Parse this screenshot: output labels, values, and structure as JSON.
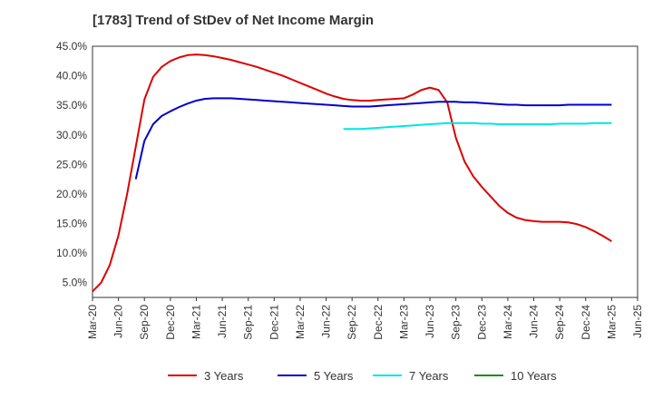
{
  "chart_data": {
    "type": "line",
    "title": "[1783]  Trend of StDev of Net Income Margin",
    "xlabel": "",
    "ylabel": "",
    "ylim": [
      2.5,
      45.0
    ],
    "yticks": [
      5.0,
      10.0,
      15.0,
      20.0,
      25.0,
      30.0,
      35.0,
      40.0,
      45.0
    ],
    "ytick_labels": [
      "5.0%",
      "10.0%",
      "15.0%",
      "20.0%",
      "25.0%",
      "30.0%",
      "35.0%",
      "40.0%",
      "45.0%"
    ],
    "xlim": [
      "2020-03",
      "2025-06"
    ],
    "xtick_labels": [
      "Mar-20",
      "Jun-20",
      "Sep-20",
      "Dec-20",
      "Mar-21",
      "Jun-21",
      "Sep-21",
      "Dec-21",
      "Mar-22",
      "Jun-22",
      "Sep-22",
      "Dec-22",
      "Mar-23",
      "Jun-23",
      "Sep-23",
      "Dec-23",
      "Mar-24",
      "Jun-24",
      "Sep-24",
      "Dec-24",
      "Mar-25",
      "Jun-25"
    ],
    "grid": true,
    "legend_position": "bottom",
    "series": [
      {
        "name": "3 Years",
        "color": "#dd0000",
        "points": [
          [
            "2020-03",
            3.5
          ],
          [
            "2020-04",
            5.0
          ],
          [
            "2020-05",
            8.0
          ],
          [
            "2020-06",
            13.0
          ],
          [
            "2020-07",
            20.0
          ],
          [
            "2020-08",
            28.0
          ],
          [
            "2020-09",
            36.0
          ],
          [
            "2020-10",
            39.8
          ],
          [
            "2020-11",
            41.5
          ],
          [
            "2020-12",
            42.5
          ],
          [
            "2021-01",
            43.1
          ],
          [
            "2021-02",
            43.5
          ],
          [
            "2021-03",
            43.6
          ],
          [
            "2021-04",
            43.5
          ],
          [
            "2021-05",
            43.3
          ],
          [
            "2021-06",
            43.0
          ],
          [
            "2021-07",
            42.7
          ],
          [
            "2021-08",
            42.3
          ],
          [
            "2021-09",
            41.9
          ],
          [
            "2021-10",
            41.5
          ],
          [
            "2021-11",
            41.0
          ],
          [
            "2021-12",
            40.5
          ],
          [
            "2022-01",
            40.0
          ],
          [
            "2022-02",
            39.4
          ],
          [
            "2022-03",
            38.8
          ],
          [
            "2022-04",
            38.2
          ],
          [
            "2022-05",
            37.6
          ],
          [
            "2022-06",
            37.0
          ],
          [
            "2022-07",
            36.5
          ],
          [
            "2022-08",
            36.1
          ],
          [
            "2022-09",
            35.9
          ],
          [
            "2022-10",
            35.8
          ],
          [
            "2022-11",
            35.8
          ],
          [
            "2022-12",
            35.9
          ],
          [
            "2023-01",
            36.0
          ],
          [
            "2023-02",
            36.1
          ],
          [
            "2023-03",
            36.2
          ],
          [
            "2023-04",
            36.8
          ],
          [
            "2023-05",
            37.6
          ],
          [
            "2023-06",
            38.0
          ],
          [
            "2023-07",
            37.6
          ],
          [
            "2023-08",
            35.5
          ],
          [
            "2023-09",
            29.5
          ],
          [
            "2023-10",
            25.5
          ],
          [
            "2023-11",
            23.0
          ],
          [
            "2023-12",
            21.2
          ],
          [
            "2024-01",
            19.6
          ],
          [
            "2024-02",
            18.0
          ],
          [
            "2024-03",
            16.8
          ],
          [
            "2024-04",
            16.0
          ],
          [
            "2024-05",
            15.6
          ],
          [
            "2024-06",
            15.4
          ],
          [
            "2024-07",
            15.3
          ],
          [
            "2024-08",
            15.3
          ],
          [
            "2024-09",
            15.3
          ],
          [
            "2024-10",
            15.2
          ],
          [
            "2024-11",
            14.9
          ],
          [
            "2024-12",
            14.4
          ],
          [
            "2025-01",
            13.7
          ],
          [
            "2025-02",
            12.9
          ],
          [
            "2025-03",
            12.0
          ]
        ]
      },
      {
        "name": "5 Years",
        "color": "#0000cc",
        "points": [
          [
            "2020-08",
            22.5
          ],
          [
            "2020-09",
            29.0
          ],
          [
            "2020-10",
            31.8
          ],
          [
            "2020-11",
            33.2
          ],
          [
            "2020-12",
            34.0
          ],
          [
            "2021-01",
            34.7
          ],
          [
            "2021-02",
            35.3
          ],
          [
            "2021-03",
            35.8
          ],
          [
            "2021-04",
            36.1
          ],
          [
            "2021-05",
            36.2
          ],
          [
            "2021-06",
            36.2
          ],
          [
            "2021-07",
            36.2
          ],
          [
            "2021-08",
            36.1
          ],
          [
            "2021-09",
            36.0
          ],
          [
            "2021-10",
            35.9
          ],
          [
            "2021-11",
            35.8
          ],
          [
            "2021-12",
            35.7
          ],
          [
            "2022-01",
            35.6
          ],
          [
            "2022-02",
            35.5
          ],
          [
            "2022-03",
            35.4
          ],
          [
            "2022-04",
            35.3
          ],
          [
            "2022-05",
            35.2
          ],
          [
            "2022-06",
            35.1
          ],
          [
            "2022-07",
            35.0
          ],
          [
            "2022-08",
            34.9
          ],
          [
            "2022-09",
            34.8
          ],
          [
            "2022-10",
            34.8
          ],
          [
            "2022-11",
            34.8
          ],
          [
            "2022-12",
            34.9
          ],
          [
            "2023-01",
            35.0
          ],
          [
            "2023-02",
            35.1
          ],
          [
            "2023-03",
            35.2
          ],
          [
            "2023-04",
            35.3
          ],
          [
            "2023-05",
            35.4
          ],
          [
            "2023-06",
            35.5
          ],
          [
            "2023-07",
            35.6
          ],
          [
            "2023-08",
            35.6
          ],
          [
            "2023-09",
            35.6
          ],
          [
            "2023-10",
            35.5
          ],
          [
            "2023-11",
            35.5
          ],
          [
            "2023-12",
            35.4
          ],
          [
            "2024-01",
            35.3
          ],
          [
            "2024-02",
            35.2
          ],
          [
            "2024-03",
            35.1
          ],
          [
            "2024-04",
            35.1
          ],
          [
            "2024-05",
            35.0
          ],
          [
            "2024-06",
            35.0
          ],
          [
            "2024-07",
            35.0
          ],
          [
            "2024-08",
            35.0
          ],
          [
            "2024-09",
            35.0
          ],
          [
            "2024-10",
            35.1
          ],
          [
            "2024-11",
            35.1
          ],
          [
            "2024-12",
            35.1
          ],
          [
            "2025-01",
            35.1
          ],
          [
            "2025-02",
            35.1
          ],
          [
            "2025-03",
            35.1
          ]
        ]
      },
      {
        "name": "7 Years",
        "color": "#00e5e5",
        "points": [
          [
            "2022-08",
            31.0
          ],
          [
            "2022-09",
            31.0
          ],
          [
            "2022-10",
            31.0
          ],
          [
            "2022-11",
            31.1
          ],
          [
            "2022-12",
            31.2
          ],
          [
            "2023-01",
            31.3
          ],
          [
            "2023-02",
            31.4
          ],
          [
            "2023-03",
            31.5
          ],
          [
            "2023-04",
            31.6
          ],
          [
            "2023-05",
            31.7
          ],
          [
            "2023-06",
            31.8
          ],
          [
            "2023-07",
            31.9
          ],
          [
            "2023-08",
            32.0
          ],
          [
            "2023-09",
            32.0
          ],
          [
            "2023-10",
            32.0
          ],
          [
            "2023-11",
            32.0
          ],
          [
            "2023-12",
            31.9
          ],
          [
            "2024-01",
            31.9
          ],
          [
            "2024-02",
            31.8
          ],
          [
            "2024-03",
            31.8
          ],
          [
            "2024-04",
            31.8
          ],
          [
            "2024-05",
            31.8
          ],
          [
            "2024-06",
            31.8
          ],
          [
            "2024-07",
            31.8
          ],
          [
            "2024-08",
            31.8
          ],
          [
            "2024-09",
            31.9
          ],
          [
            "2024-10",
            31.9
          ],
          [
            "2024-11",
            31.9
          ],
          [
            "2024-12",
            31.9
          ],
          [
            "2025-01",
            32.0
          ],
          [
            "2025-02",
            32.0
          ],
          [
            "2025-03",
            32.0
          ]
        ]
      },
      {
        "name": "10 Years",
        "color": "#228b22",
        "points": []
      }
    ]
  }
}
